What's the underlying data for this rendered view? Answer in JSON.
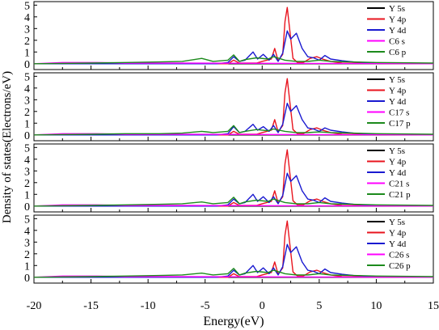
{
  "chart_data": {
    "type": "line",
    "ylabel": "Density of states(Electrons/eV)",
    "xlabel": "Energy(eV)",
    "xlim": [
      -20,
      15
    ],
    "x_ticks": [
      "-20",
      "-15",
      "-10",
      "-5",
      "0",
      "5",
      "10",
      "15"
    ],
    "ylim": [
      -0.5,
      5.3
    ],
    "y_ticks": [
      "0",
      "1",
      "2",
      "3",
      "4",
      "5"
    ],
    "grid": false,
    "legend_position": "right",
    "series_colors": [
      "#000000",
      "#e8141e",
      "#1a1ad0",
      "#ff00ff",
      "#1c8a1c"
    ],
    "panels": [
      {
        "series": [
          {
            "name": "Y 5s",
            "x": [
              -20,
              15
            ],
            "y": [
              0,
              0
            ]
          },
          {
            "name": "Y 4p",
            "x": [
              -20,
              -3.0,
              -2.5,
              -2.0,
              -0.5,
              0.0,
              0.8,
              1.1,
              1.4,
              1.8,
              2.0,
              2.2,
              2.4,
              2.7,
              3.1,
              3.6,
              4.2,
              4.8,
              5.3,
              6.0,
              7.0,
              15
            ],
            "y": [
              0,
              0,
              0.3,
              0.05,
              0.05,
              0.2,
              0.4,
              1.3,
              0.25,
              0.8,
              3.6,
              4.8,
              3.0,
              0.45,
              0.1,
              0.1,
              0.45,
              0.6,
              0.4,
              0.2,
              0.05,
              0
            ]
          },
          {
            "name": "Y 4d",
            "x": [
              -20,
              -4.0,
              -3.0,
              -2.5,
              -2.0,
              -1.5,
              -0.8,
              -0.4,
              0.1,
              0.6,
              1.0,
              1.4,
              1.8,
              2.2,
              2.5,
              3.0,
              3.5,
              4.0,
              4.5,
              5.0,
              5.5,
              6.0,
              7.0,
              8.0,
              9.0,
              10.0,
              15
            ],
            "y": [
              0,
              0,
              0.1,
              0.6,
              0.2,
              0.3,
              1.0,
              0.4,
              0.8,
              0.3,
              0.8,
              0.2,
              0.9,
              2.8,
              2.1,
              2.6,
              1.3,
              0.6,
              0.5,
              0.3,
              0.7,
              0.4,
              0.25,
              0.15,
              0.1,
              0.05,
              0
            ]
          },
          {
            "name": "C6 s",
            "x": [
              -20,
              -17.5,
              -14.5,
              -12.0,
              -8.0,
              15
            ],
            "y": [
              0,
              0.1,
              0.1,
              0.05,
              0.05,
              0
            ]
          },
          {
            "name": "C6 p",
            "x": [
              -20,
              -15.0,
              -12.0,
              -9.0,
              -7.0,
              -5.3,
              -4.3,
              -3.0,
              -2.5,
              -2.0,
              -1.5,
              -0.5,
              0.5,
              1.0,
              2.0,
              3.0,
              4.0,
              5.0,
              6.0,
              8.0,
              10.0,
              15
            ],
            "y": [
              0,
              0.05,
              0.1,
              0.15,
              0.2,
              0.45,
              0.2,
              0.3,
              0.75,
              0.2,
              0.35,
              0.5,
              0.4,
              0.6,
              0.3,
              0.2,
              0.2,
              0.3,
              0.2,
              0.15,
              0.1,
              0.05
            ]
          }
        ]
      },
      {
        "series": [
          {
            "name": "Y 5s",
            "x": [
              -20,
              15
            ],
            "y": [
              0,
              0
            ]
          },
          {
            "name": "Y 4p",
            "x": [
              -20,
              -3.0,
              -2.5,
              -2.0,
              -0.5,
              0.0,
              0.8,
              1.1,
              1.4,
              1.8,
              2.0,
              2.2,
              2.4,
              2.7,
              3.1,
              3.6,
              4.2,
              4.8,
              5.3,
              6.0,
              7.0,
              15
            ],
            "y": [
              0,
              0,
              0.3,
              0.05,
              0.05,
              0.2,
              0.4,
              1.3,
              0.25,
              0.8,
              3.6,
              4.8,
              3.0,
              0.45,
              0.1,
              0.1,
              0.45,
              0.6,
              0.4,
              0.2,
              0.05,
              0
            ]
          },
          {
            "name": "Y 4d",
            "x": [
              -20,
              -4.0,
              -3.0,
              -2.5,
              -2.0,
              -1.5,
              -0.8,
              -0.4,
              0.1,
              0.6,
              1.0,
              1.4,
              1.8,
              2.2,
              2.5,
              3.0,
              3.5,
              4.0,
              4.5,
              5.0,
              5.5,
              6.0,
              7.0,
              8.0,
              9.0,
              10.0,
              15
            ],
            "y": [
              0,
              0,
              0.1,
              0.7,
              0.2,
              0.3,
              0.9,
              0.4,
              0.7,
              0.3,
              0.8,
              0.2,
              0.9,
              2.7,
              2.0,
              2.5,
              1.3,
              0.6,
              0.5,
              0.3,
              0.6,
              0.4,
              0.25,
              0.15,
              0.1,
              0.05,
              0
            ]
          },
          {
            "name": "C17 s",
            "x": [
              -20,
              -17.5,
              -14.5,
              -12.0,
              -8.0,
              15
            ],
            "y": [
              0,
              0.1,
              0.1,
              0.05,
              0.05,
              0
            ]
          },
          {
            "name": "C17 p",
            "x": [
              -20,
              -15.0,
              -12.0,
              -9.0,
              -7.0,
              -5.3,
              -4.3,
              -3.0,
              -2.5,
              -2.0,
              -1.5,
              -0.5,
              0.5,
              1.0,
              2.0,
              3.0,
              4.0,
              5.0,
              6.0,
              8.0,
              10.0,
              15
            ],
            "y": [
              0,
              0.05,
              0.1,
              0.1,
              0.15,
              0.3,
              0.2,
              0.3,
              0.8,
              0.2,
              0.3,
              0.45,
              0.35,
              0.5,
              0.3,
              0.2,
              0.2,
              0.25,
              0.2,
              0.15,
              0.1,
              0.05
            ]
          }
        ]
      },
      {
        "series": [
          {
            "name": "Y 5s",
            "x": [
              -20,
              15
            ],
            "y": [
              0,
              0
            ]
          },
          {
            "name": "Y 4p",
            "x": [
              -20,
              -3.0,
              -2.5,
              -2.0,
              -0.5,
              0.0,
              0.8,
              1.1,
              1.4,
              1.8,
              2.0,
              2.2,
              2.4,
              2.7,
              3.1,
              3.6,
              4.2,
              4.8,
              5.3,
              6.0,
              7.0,
              15
            ],
            "y": [
              0,
              0,
              0.3,
              0.05,
              0.05,
              0.2,
              0.4,
              1.3,
              0.25,
              0.8,
              3.6,
              4.8,
              3.0,
              0.45,
              0.1,
              0.1,
              0.45,
              0.6,
              0.4,
              0.2,
              0.05,
              0
            ]
          },
          {
            "name": "Y 4d",
            "x": [
              -20,
              -4.0,
              -3.0,
              -2.5,
              -2.0,
              -1.5,
              -0.8,
              -0.4,
              0.1,
              0.6,
              1.0,
              1.4,
              1.8,
              2.2,
              2.5,
              3.0,
              3.5,
              4.0,
              4.5,
              5.0,
              5.5,
              6.0,
              7.0,
              8.0,
              9.0,
              10.0,
              15
            ],
            "y": [
              0,
              0,
              0.1,
              0.6,
              0.2,
              0.3,
              1.0,
              0.4,
              0.8,
              0.3,
              0.8,
              0.2,
              0.9,
              2.8,
              2.1,
              2.6,
              1.3,
              0.6,
              0.5,
              0.3,
              0.7,
              0.4,
              0.25,
              0.15,
              0.1,
              0.05,
              0
            ]
          },
          {
            "name": "C21 s",
            "x": [
              -20,
              -17.5,
              -14.5,
              -12.0,
              -8.0,
              15
            ],
            "y": [
              0,
              0.1,
              0.1,
              0.05,
              0.05,
              0
            ]
          },
          {
            "name": "C21 p",
            "x": [
              -20,
              -15.0,
              -12.0,
              -9.0,
              -7.0,
              -5.3,
              -4.3,
              -3.0,
              -2.5,
              -2.0,
              -1.5,
              -0.5,
              0.5,
              1.0,
              2.0,
              3.0,
              4.0,
              5.0,
              6.0,
              8.0,
              10.0,
              15
            ],
            "y": [
              0,
              0.05,
              0.1,
              0.15,
              0.2,
              0.35,
              0.2,
              0.3,
              0.75,
              0.2,
              0.35,
              0.5,
              0.4,
              0.6,
              0.3,
              0.2,
              0.2,
              0.3,
              0.2,
              0.15,
              0.1,
              0.05
            ]
          }
        ]
      },
      {
        "series": [
          {
            "name": "Y 5s",
            "x": [
              -20,
              15
            ],
            "y": [
              0,
              0
            ]
          },
          {
            "name": "Y 4p",
            "x": [
              -20,
              -3.0,
              -2.5,
              -2.0,
              -0.5,
              0.0,
              0.8,
              1.1,
              1.4,
              1.8,
              2.0,
              2.2,
              2.4,
              2.7,
              3.1,
              3.6,
              4.2,
              4.8,
              5.3,
              6.0,
              7.0,
              15
            ],
            "y": [
              0,
              0,
              0.3,
              0.05,
              0.05,
              0.2,
              0.4,
              1.3,
              0.25,
              0.8,
              3.6,
              4.8,
              3.0,
              0.45,
              0.1,
              0.1,
              0.45,
              0.6,
              0.4,
              0.2,
              0.05,
              0
            ]
          },
          {
            "name": "Y 4d",
            "x": [
              -20,
              -4.0,
              -3.0,
              -2.5,
              -2.0,
              -1.5,
              -0.8,
              -0.4,
              0.1,
              0.6,
              1.0,
              1.4,
              1.8,
              2.2,
              2.5,
              3.0,
              3.5,
              4.0,
              4.5,
              5.0,
              5.5,
              6.0,
              7.0,
              8.0,
              9.0,
              10.0,
              15
            ],
            "y": [
              0,
              0,
              0.1,
              0.6,
              0.2,
              0.3,
              1.0,
              0.4,
              0.8,
              0.3,
              0.8,
              0.2,
              0.9,
              2.8,
              2.1,
              2.6,
              1.3,
              0.6,
              0.5,
              0.3,
              0.7,
              0.4,
              0.25,
              0.15,
              0.1,
              0.05,
              0
            ]
          },
          {
            "name": "C26 s",
            "x": [
              -20,
              -17.5,
              -14.5,
              -12.0,
              -8.0,
              15
            ],
            "y": [
              0,
              0.1,
              0.1,
              0.05,
              0.05,
              0
            ]
          },
          {
            "name": "C26 p",
            "x": [
              -20,
              -15.0,
              -12.0,
              -9.0,
              -7.0,
              -5.3,
              -4.3,
              -3.0,
              -2.5,
              -2.0,
              -1.5,
              -0.5,
              0.5,
              1.0,
              2.0,
              3.0,
              4.0,
              5.0,
              6.0,
              8.0,
              10.0,
              15
            ],
            "y": [
              0,
              0.05,
              0.1,
              0.15,
              0.2,
              0.35,
              0.2,
              0.3,
              0.75,
              0.2,
              0.35,
              0.5,
              0.4,
              0.6,
              0.3,
              0.2,
              0.2,
              0.3,
              0.2,
              0.15,
              0.1,
              0.05
            ]
          }
        ]
      }
    ]
  }
}
